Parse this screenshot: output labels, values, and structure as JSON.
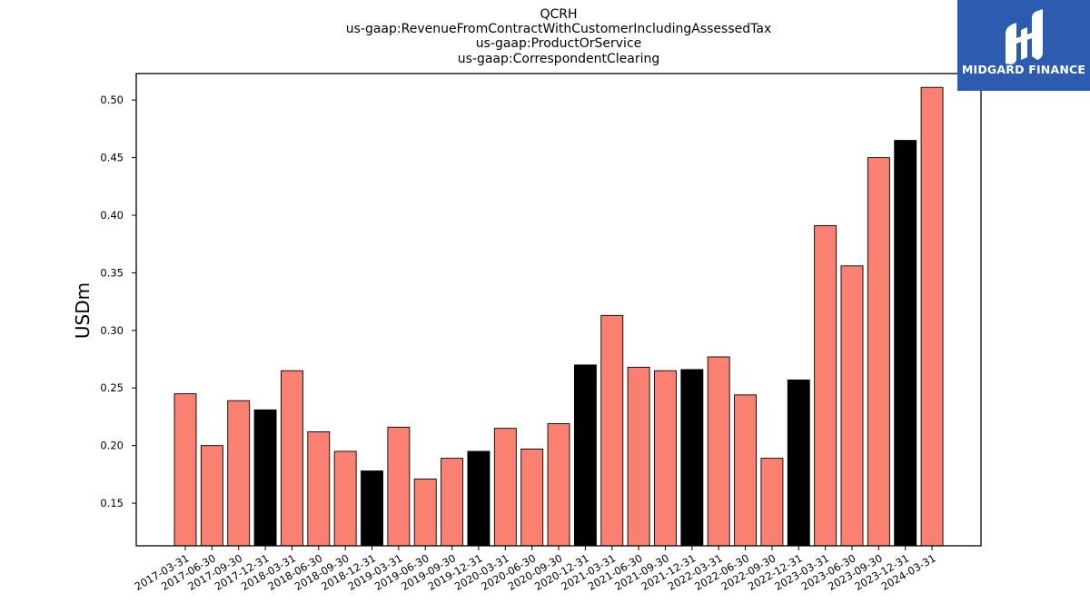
{
  "chart_data": {
    "type": "bar",
    "title_lines": [
      "QCRH",
      "us-gaap:RevenueFromContractWithCustomerIncludingAssessedTax",
      "us-gaap:ProductOrService",
      "us-gaap:CorrespondentClearing"
    ],
    "ylabel": "USDm",
    "xlabel": "",
    "ylim": [
      0.113,
      0.523
    ],
    "yticks": [
      0.15,
      0.2,
      0.25,
      0.3,
      0.35,
      0.4,
      0.45,
      0.5
    ],
    "ytick_labels": [
      "0.15",
      "0.20",
      "0.25",
      "0.30",
      "0.35",
      "0.40",
      "0.45",
      "0.50"
    ],
    "categories": [
      "2017-03-31",
      "2017-06-30",
      "2017-09-30",
      "2017-12-31",
      "2018-03-31",
      "2018-06-30",
      "2018-09-30",
      "2018-12-31",
      "2019-03-31",
      "2019-06-30",
      "2019-09-30",
      "2019-12-31",
      "2020-03-31",
      "2020-06-30",
      "2020-09-30",
      "2020-12-31",
      "2021-03-31",
      "2021-06-30",
      "2021-09-30",
      "2021-12-31",
      "2022-03-31",
      "2022-06-30",
      "2022-09-30",
      "2022-12-31",
      "2023-03-31",
      "2023-06-30",
      "2023-09-30",
      "2023-12-31",
      "2024-03-31"
    ],
    "values": [
      0.245,
      0.2,
      0.239,
      0.231,
      0.265,
      0.212,
      0.195,
      0.178,
      0.216,
      0.171,
      0.189,
      0.195,
      0.215,
      0.197,
      0.219,
      0.27,
      0.313,
      0.268,
      0.265,
      0.266,
      0.277,
      0.244,
      0.189,
      0.257,
      0.391,
      0.356,
      0.45,
      0.465,
      0.511
    ],
    "bar_colors": {
      "quarter": "#fa8072",
      "year_end": "#000000"
    },
    "year_end_suffix": "12-31",
    "grid": false,
    "legend": "none"
  },
  "logo": {
    "text": "MIDGARD FINANCE",
    "background": "#2d5bb0"
  }
}
